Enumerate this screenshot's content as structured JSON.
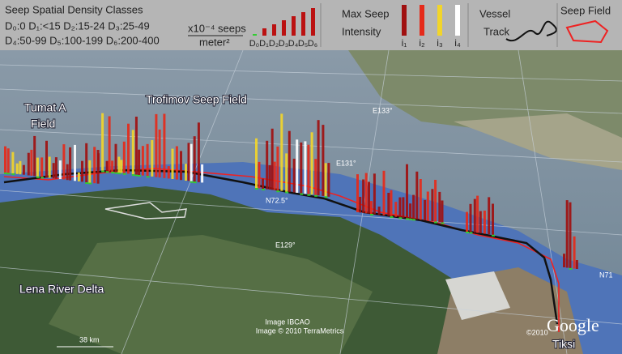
{
  "legend": {
    "density_title": "Seep Spatial Density Classes",
    "density_classes_line1": "D₀:0  D₁:<15  D₂:15-24  D₃:25-49",
    "density_classes_line2": "D₄:50-99  D₅:100-199  D₆:200-400",
    "unit_top": "x10⁻⁴ seeps",
    "unit_bottom": "meter²",
    "density_bars": [
      "D₀",
      "D₁",
      "D₂",
      "D₃",
      "D₄",
      "D₅",
      "D₆"
    ],
    "intensity_title_line1": "Max Seep",
    "intensity_title_line2": "Intensity",
    "intensity_bars": [
      "i₁",
      "i₂",
      "i₃",
      "i₄"
    ],
    "vessel_track_line1": "Vessel",
    "vessel_track_line2": "Track",
    "seep_field": "Seep Field"
  },
  "map_labels": {
    "tumat_line1": "Tumat A",
    "tumat_line2": "Field",
    "trofimov": "Trofimov Seep Field",
    "e133": "E133°",
    "e131": "E131°",
    "n725": "N72.5°",
    "e129": "E129°",
    "lena": "Lena River Delta",
    "ibcao": "Image IBCAO",
    "terrametrics": "Image © 2010 TerraMetrics",
    "scale": "38 km",
    "copyright": "©2010",
    "google": "Google",
    "tiksi": "Tiksi",
    "n71": "N71"
  }
}
